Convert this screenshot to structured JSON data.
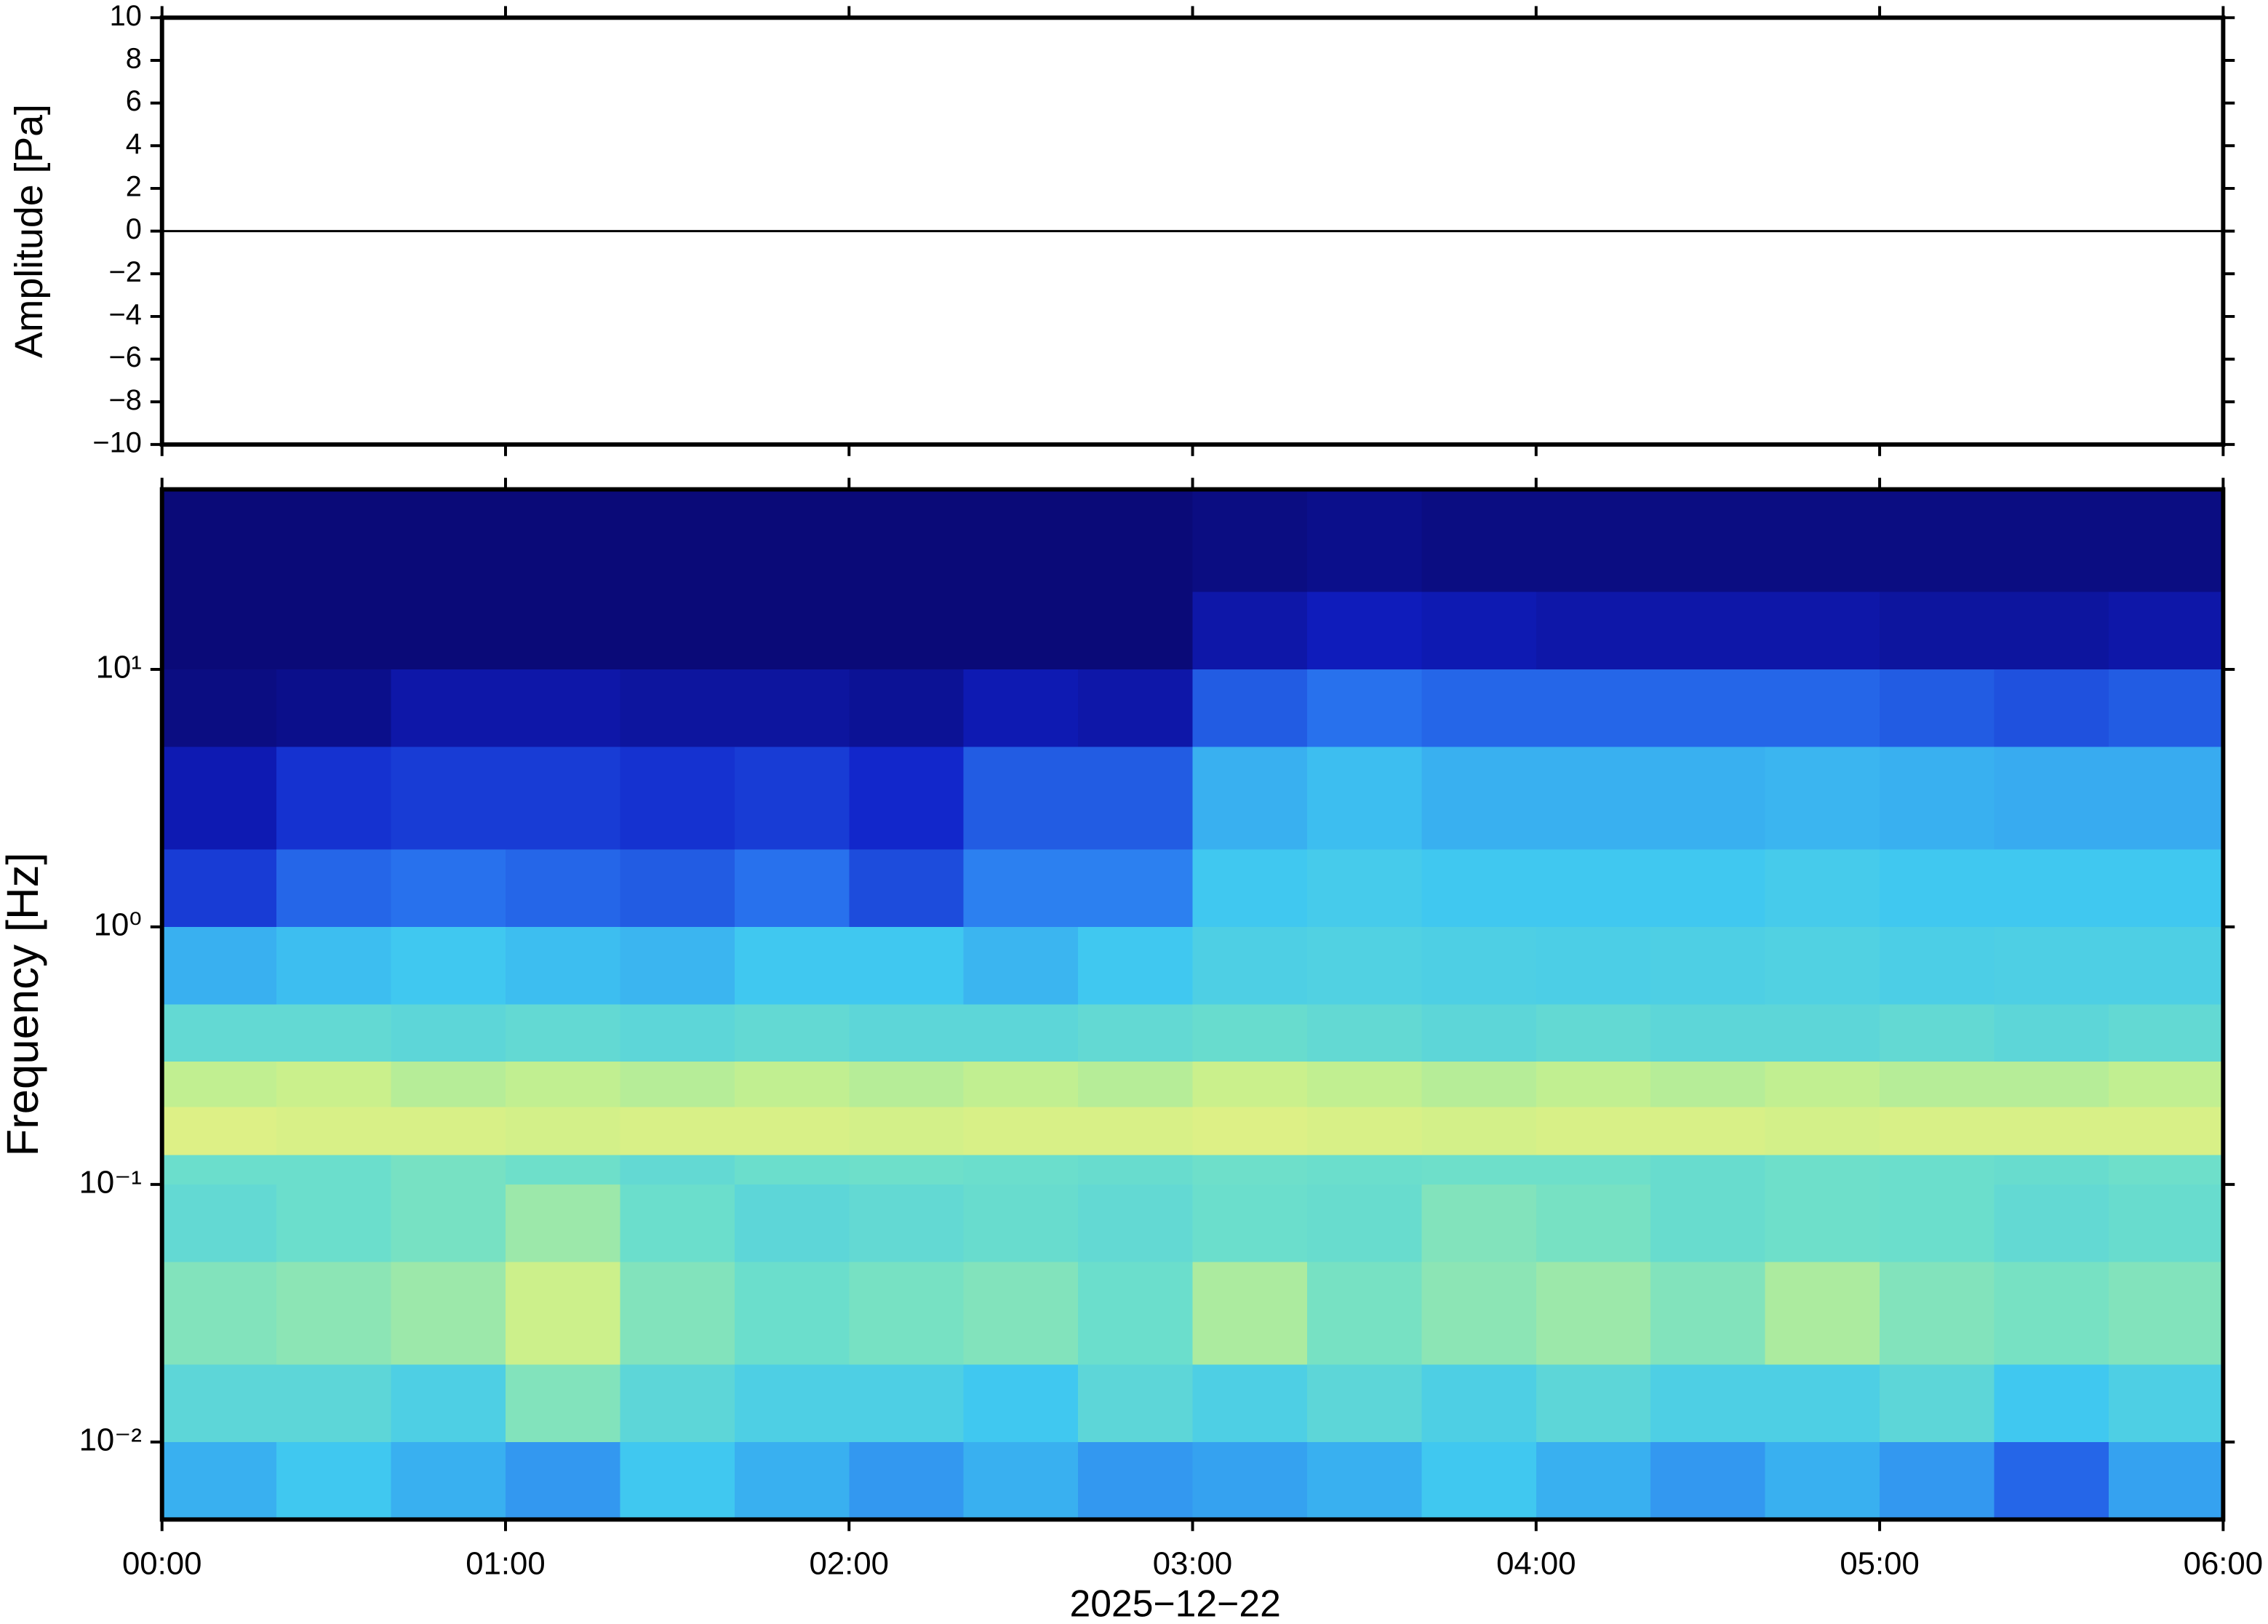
{
  "chart_data": [
    {
      "type": "line",
      "ylabel": "Amplitude [Pa]",
      "x": [
        0,
        30,
        60,
        90,
        120,
        150,
        180,
        210,
        240,
        270,
        300,
        330,
        360
      ],
      "values": [
        0,
        0,
        0,
        0,
        0,
        0,
        0,
        0,
        0,
        0,
        0,
        0,
        0
      ],
      "color": "#000000",
      "xlim": [
        0,
        360
      ],
      "xticks": [
        0,
        60,
        120,
        180,
        240,
        300,
        360
      ],
      "ylim": [
        -10,
        10
      ],
      "yticks": [
        10,
        8,
        6,
        4,
        2,
        0,
        {
          "value": -2,
          "label": "−2"
        },
        {
          "value": -4,
          "label": "−4"
        },
        {
          "value": -6,
          "label": "−6"
        },
        {
          "value": -8,
          "label": "−8"
        },
        {
          "value": -10,
          "label": "−10"
        }
      ]
    },
    {
      "type": "heatmap",
      "ylabel": "Frequency [Hz]",
      "xlabel": "2025−12−22",
      "log_y": true,
      "xlim": [
        0,
        360
      ],
      "xticks": [
        {
          "value": 0,
          "label": "00:00"
        },
        {
          "value": 60,
          "label": "01:00"
        },
        {
          "value": 120,
          "label": "02:00"
        },
        {
          "value": 180,
          "label": "03:00"
        },
        {
          "value": 240,
          "label": "04:00"
        },
        {
          "value": 300,
          "label": "05:00"
        },
        {
          "value": 360,
          "label": "06:00"
        }
      ],
      "ylim": [
        0.005,
        50
      ],
      "yticks": [
        {
          "value": 0.01,
          "label": "10⁻²"
        },
        {
          "value": 0.1,
          "label": "10⁻¹"
        },
        {
          "value": 1,
          "label": "10⁰"
        },
        {
          "value": 10,
          "label": "10¹"
        }
      ],
      "colormap": [
        "#0a0a78",
        "#1020c8",
        "#2a78f0",
        "#40c8f0",
        "#70e0c8",
        "#c8f08c",
        "#f0f080"
      ],
      "x_bins": [
        0,
        20,
        40,
        60,
        80,
        100,
        120,
        140,
        160,
        180,
        200,
        220,
        240,
        260,
        280,
        300,
        320,
        340,
        360
      ],
      "y_bins": [
        0.005,
        0.01,
        0.02,
        0.05,
        0.1,
        0.13,
        0.2,
        0.3,
        0.5,
        1,
        2,
        5,
        10,
        20,
        50
      ],
      "values": [
        [
          0.45,
          0.5,
          0.45,
          0.4,
          0.5,
          0.45,
          0.4,
          0.45,
          0.4,
          0.42,
          0.45,
          0.5,
          0.45,
          0.4,
          0.45,
          0.4,
          0.3,
          0.42
        ],
        [
          0.6,
          0.6,
          0.55,
          0.7,
          0.6,
          0.55,
          0.55,
          0.5,
          0.6,
          0.55,
          0.6,
          0.55,
          0.6,
          0.55,
          0.55,
          0.6,
          0.5,
          0.55
        ],
        [
          0.7,
          0.72,
          0.75,
          0.85,
          0.7,
          0.65,
          0.68,
          0.7,
          0.65,
          0.78,
          0.68,
          0.72,
          0.75,
          0.7,
          0.78,
          0.7,
          0.68,
          0.7
        ],
        [
          0.62,
          0.65,
          0.68,
          0.75,
          0.65,
          0.6,
          0.62,
          0.64,
          0.62,
          0.65,
          0.64,
          0.7,
          0.68,
          0.64,
          0.66,
          0.65,
          0.62,
          0.64
        ],
        [
          0.65,
          0.65,
          0.68,
          0.66,
          0.62,
          0.65,
          0.66,
          0.65,
          0.64,
          0.66,
          0.65,
          0.66,
          0.66,
          0.64,
          0.66,
          0.65,
          0.64,
          0.66
        ],
        [
          0.92,
          0.9,
          0.9,
          0.88,
          0.9,
          0.9,
          0.88,
          0.9,
          0.9,
          0.92,
          0.9,
          0.88,
          0.9,
          0.9,
          0.88,
          0.9,
          0.9,
          0.9
        ],
        [
          0.82,
          0.84,
          0.8,
          0.82,
          0.8,
          0.82,
          0.8,
          0.82,
          0.8,
          0.84,
          0.82,
          0.8,
          0.82,
          0.8,
          0.82,
          0.8,
          0.8,
          0.82
        ],
        [
          0.62,
          0.62,
          0.6,
          0.62,
          0.6,
          0.62,
          0.6,
          0.6,
          0.62,
          0.64,
          0.62,
          0.6,
          0.62,
          0.6,
          0.6,
          0.62,
          0.6,
          0.62
        ],
        [
          0.45,
          0.48,
          0.5,
          0.48,
          0.46,
          0.5,
          0.5,
          0.46,
          0.5,
          0.55,
          0.56,
          0.55,
          0.54,
          0.55,
          0.56,
          0.54,
          0.55,
          0.55
        ],
        [
          0.22,
          0.3,
          0.32,
          0.3,
          0.28,
          0.32,
          0.25,
          0.35,
          0.35,
          0.5,
          0.52,
          0.5,
          0.5,
          0.5,
          0.52,
          0.5,
          0.5,
          0.5
        ],
        [
          0.12,
          0.2,
          0.22,
          0.22,
          0.2,
          0.22,
          0.18,
          0.28,
          0.28,
          0.45,
          0.48,
          0.45,
          0.45,
          0.45,
          0.46,
          0.45,
          0.44,
          0.44
        ],
        [
          0.02,
          0.04,
          0.1,
          0.1,
          0.08,
          0.08,
          0.06,
          0.12,
          0.1,
          0.28,
          0.32,
          0.3,
          0.3,
          0.3,
          0.3,
          0.28,
          0.26,
          0.28
        ],
        [
          0,
          0,
          0,
          0,
          0,
          0,
          0,
          0,
          0,
          0.1,
          0.14,
          0.12,
          0.1,
          0.1,
          0.1,
          0.08,
          0.08,
          0.1
        ],
        [
          0,
          0,
          0,
          0,
          0,
          0,
          0,
          0,
          0,
          0.02,
          0.04,
          0.02,
          0.02,
          0.02,
          0.02,
          0.02,
          0.02,
          0.02
        ]
      ]
    }
  ]
}
